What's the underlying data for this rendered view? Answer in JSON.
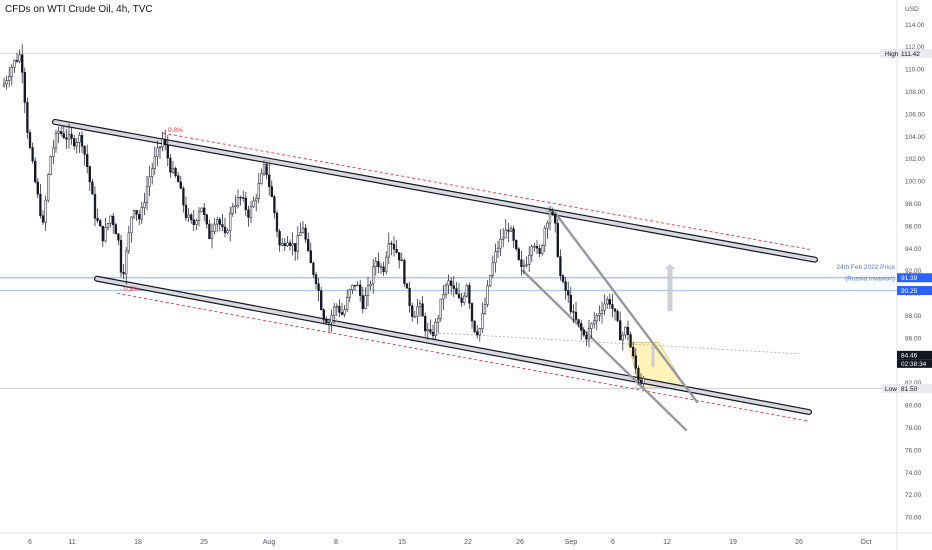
{
  "header": {
    "title": "CFDs on WTI Crude Oil, 4h, TVC"
  },
  "price_axis": {
    "currency": "USD",
    "ticks": [
      "114.00",
      "112.00",
      "110.00",
      "108.00",
      "106.00",
      "104.00",
      "102.00",
      "100.00",
      "98.00",
      "96.00",
      "94.00",
      "92.00",
      "90.00",
      "88.00",
      "86.00",
      "84.00",
      "82.00",
      "80.00",
      "78.00",
      "76.00",
      "74.00",
      "72.00",
      "70.00"
    ],
    "tick_values": [
      114,
      112,
      110,
      108,
      106,
      104,
      102,
      100,
      98,
      96,
      94,
      92,
      90,
      88,
      86,
      84,
      82,
      80,
      78,
      76,
      74,
      72,
      70
    ]
  },
  "time_axis": {
    "labels": [
      "6",
      "11",
      "18",
      "25",
      "Aug",
      "8",
      "15",
      "22",
      "26",
      "Sep",
      "6",
      "12",
      "19",
      "26",
      "Oct"
    ]
  },
  "price_tags": {
    "high_label": "High",
    "high_value": "111.42",
    "russia_value": "91.39",
    "russia_value2": "90.25",
    "current_value": "84.46",
    "countdown": "02:38:34",
    "low_label": "Low",
    "low_value": "81.50"
  },
  "annotations": {
    "pct_top": "- 0.8%",
    "pct_bottom": "- 0.8%",
    "russia_line1": "24th Feb 2022 Price",
    "russia_line2": "(Russia invasion)"
  },
  "colors": {
    "candle": "#131722",
    "channel_band": "#787b86",
    "dashed_red": "#f23645",
    "wedge": "#9598a1",
    "highlight_fill": "#fff2b3",
    "high_low_line": "#d1d4dc",
    "russia_line": "#b3c7f5",
    "russia_tag": "#2962ff",
    "current_tag": "#131722",
    "arrow": "#c9cad0",
    "text": "#131722"
  },
  "chart_data": {
    "type": "candlestick",
    "title": "CFDs on WTI Crude Oil, 4h, TVC",
    "ylim": [
      69,
      115.5
    ],
    "y_unit": "USD",
    "high": 111.42,
    "low": 81.5,
    "reference_price_2022_02_24": 91.39,
    "reference_price_2": 90.25,
    "current_price": 84.46,
    "x_labels": [
      "6",
      "11",
      "18",
      "25",
      "Aug",
      "8",
      "15",
      "22",
      "26",
      "Sep",
      "6",
      "12",
      "19",
      "26",
      "Oct"
    ],
    "close_path": [
      [
        0,
        108.5
      ],
      [
        10,
        110.5
      ],
      [
        18,
        111.4
      ],
      [
        25,
        104
      ],
      [
        32,
        100
      ],
      [
        40,
        96
      ],
      [
        47,
        102
      ],
      [
        55,
        104.5
      ],
      [
        63,
        104
      ],
      [
        70,
        103.5
      ],
      [
        78,
        104
      ],
      [
        85,
        101
      ],
      [
        92,
        97
      ],
      [
        100,
        95
      ],
      [
        108,
        97
      ],
      [
        115,
        95
      ],
      [
        119,
        91.3
      ],
      [
        124,
        94
      ],
      [
        130,
        98
      ],
      [
        137,
        96.5
      ],
      [
        145,
        100
      ],
      [
        152,
        102
      ],
      [
        160,
        103.8
      ],
      [
        168,
        101
      ],
      [
        175,
        100
      ],
      [
        183,
        97
      ],
      [
        190,
        96
      ],
      [
        198,
        98
      ],
      [
        206,
        95
      ],
      [
        213,
        97
      ],
      [
        222,
        95
      ],
      [
        230,
        98
      ],
      [
        238,
        98.5
      ],
      [
        246,
        97
      ],
      [
        254,
        99
      ],
      [
        262,
        101.5
      ],
      [
        270,
        98
      ],
      [
        277,
        94
      ],
      [
        284,
        95
      ],
      [
        292,
        94
      ],
      [
        300,
        96
      ],
      [
        306,
        93
      ],
      [
        314,
        91
      ],
      [
        320,
        88
      ],
      [
        326,
        87.5
      ],
      [
        333,
        89
      ],
      [
        340,
        88
      ],
      [
        346,
        90
      ],
      [
        353,
        91
      ],
      [
        360,
        89
      ],
      [
        366,
        90.5
      ],
      [
        373,
        93
      ],
      [
        380,
        92
      ],
      [
        386,
        95
      ],
      [
        392,
        94
      ],
      [
        398,
        93
      ],
      [
        404,
        90
      ],
      [
        410,
        88
      ],
      [
        416,
        89
      ],
      [
        422,
        87
      ],
      [
        428,
        86
      ],
      [
        434,
        87.5
      ],
      [
        440,
        90
      ],
      [
        446,
        91
      ],
      [
        452,
        90
      ],
      [
        458,
        89
      ],
      [
        464,
        91
      ],
      [
        470,
        87
      ],
      [
        476,
        86.5
      ],
      [
        482,
        89
      ],
      [
        488,
        92
      ],
      [
        494,
        94
      ],
      [
        500,
        95
      ],
      [
        506,
        96
      ],
      [
        512,
        94
      ],
      [
        518,
        92
      ],
      [
        524,
        93
      ],
      [
        530,
        95
      ],
      [
        536,
        93
      ],
      [
        542,
        96
      ],
      [
        547,
        97.5
      ],
      [
        552,
        96
      ],
      [
        558,
        91
      ],
      [
        564,
        90
      ],
      [
        570,
        88
      ],
      [
        576,
        87
      ],
      [
        582,
        86
      ],
      [
        588,
        87
      ],
      [
        594,
        88
      ],
      [
        600,
        89
      ],
      [
        606,
        89.5
      ],
      [
        612,
        88
      ],
      [
        618,
        86
      ],
      [
        624,
        87
      ],
      [
        628,
        85
      ],
      [
        632,
        83.5
      ],
      [
        637,
        82
      ],
      [
        640,
        82.5
      ],
      [
        643,
        84.2
      ]
    ],
    "channel_upper": {
      "from": [
        52,
        105.3
      ],
      "to": [
        812,
        93.0
      ]
    },
    "channel_lower": {
      "from": [
        94,
        91.3
      ],
      "to": [
        806,
        79.4
      ]
    },
    "dashed_upper": {
      "from": [
        160,
        104.3
      ],
      "to": [
        808,
        93.9
      ],
      "label": "- 0.8%"
    },
    "dashed_lower": {
      "from": [
        114,
        90.0
      ],
      "to": [
        805,
        78.6
      ],
      "label": "- 0.8%"
    },
    "wedge_upper": {
      "from": [
        552,
        97.2
      ],
      "to": [
        694,
        80.3
      ]
    },
    "wedge_lower": {
      "from": [
        520,
        92.0
      ],
      "to": [
        683,
        77.8
      ]
    },
    "projection_dotted": {
      "from": [
        428,
        86.5
      ],
      "to": [
        796,
        84.6
      ]
    },
    "grid": false,
    "legend": "none"
  }
}
